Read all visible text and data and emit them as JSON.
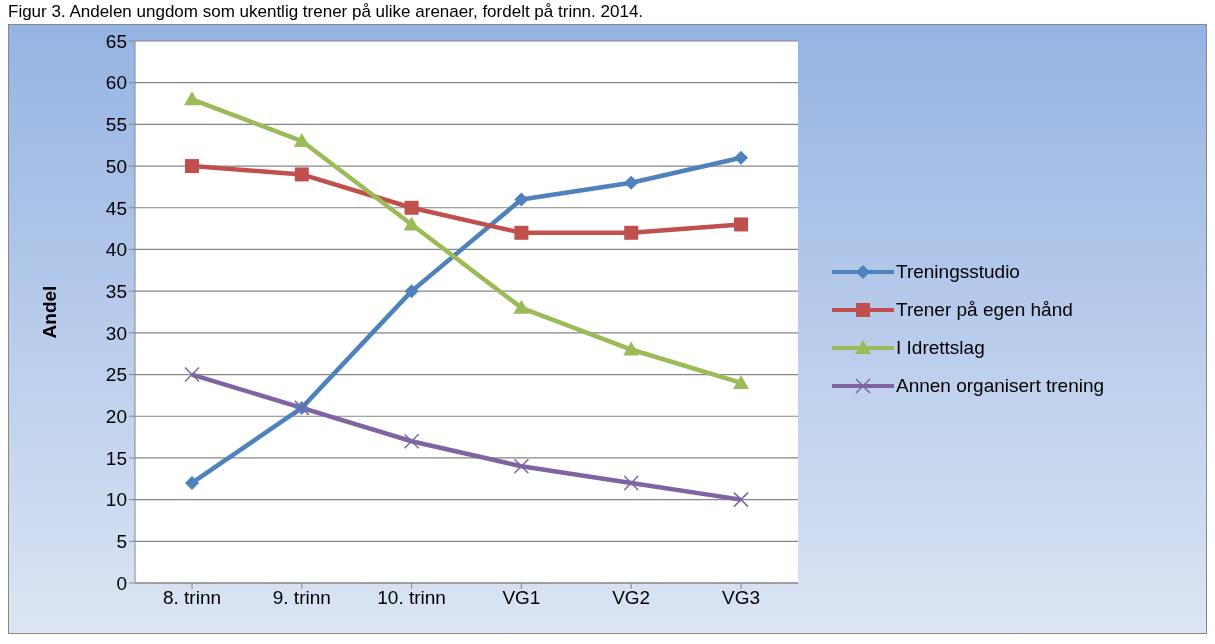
{
  "chart_data": {
    "type": "line",
    "title": "Figur 3. Andelen ungdom som ukentlig trener på ulike arenaer, fordelt på trinn. 2014.",
    "ylabel": "Andel",
    "categories": [
      "8. trinn",
      "9. trinn",
      "10. trinn",
      "VG1",
      "VG2",
      "VG3"
    ],
    "series": [
      {
        "name": "Treningsstudio",
        "color": "#4f81bd",
        "marker": "diamond",
        "values": [
          12,
          21,
          35,
          46,
          48,
          51
        ]
      },
      {
        "name": "Trener på egen hånd",
        "color": "#c0504d",
        "marker": "square",
        "values": [
          50,
          49,
          45,
          42,
          42,
          43
        ]
      },
      {
        "name": "I Idrettslag",
        "color": "#9bbb59",
        "marker": "triangle",
        "values": [
          58,
          53,
          43,
          33,
          28,
          24
        ]
      },
      {
        "name": "Annen organisert trening",
        "color": "#8064a2",
        "marker": "cross",
        "values": [
          25,
          21,
          17,
          14,
          12,
          10
        ]
      }
    ],
    "ylim": [
      0,
      65
    ],
    "yticks": [
      0,
      5,
      10,
      15,
      20,
      25,
      30,
      35,
      40,
      45,
      50,
      55,
      60,
      65
    ],
    "grid": "y",
    "legend": "right",
    "line_style": "solid"
  }
}
